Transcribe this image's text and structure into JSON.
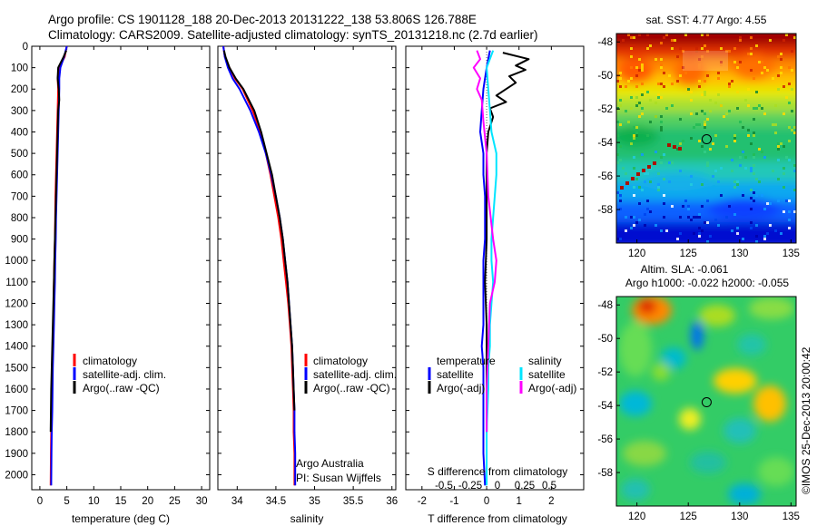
{
  "titles": {
    "line1": "Argo profile: CS 1901128_188 20-Dec-2013 20131222_138 53.806S 126.788E",
    "line2": "Climatology: CARS2009. Satellite-adjusted climatology: synTS_20131218.nc (2.7d earlier)"
  },
  "colors": {
    "climatology": "#ff0000",
    "satellite": "#0000ff",
    "argo": "#000000",
    "salinity_satellite": "#00e5ff",
    "salinity_argo": "#ff00ff"
  },
  "chart_data": [
    {
      "type": "line",
      "id": "temperature",
      "xlabel": "temperature (deg C)",
      "xlim": [
        -1.5,
        31.5
      ],
      "xticks": [
        0,
        5,
        10,
        15,
        20,
        25,
        30
      ],
      "ylim": [
        0,
        2070
      ],
      "yticks": [
        0,
        100,
        200,
        300,
        400,
        500,
        600,
        700,
        800,
        900,
        1000,
        1100,
        1200,
        1300,
        1400,
        1500,
        1600,
        1700,
        1800,
        1900,
        2000
      ],
      "y_reversed": true,
      "legend": [
        "climatology",
        "satellite-adj. clim.",
        "Argo(..raw -QC)"
      ],
      "series": [
        {
          "name": "climatology",
          "x": [
            5.0,
            4.6,
            3.6,
            3.3,
            3.4,
            3.3,
            3.2,
            3.1,
            3.0,
            2.9,
            2.85,
            2.8,
            2.7,
            2.6,
            2.55,
            2.5,
            2.4,
            2.3,
            2.2,
            2.15,
            2.1,
            2.05,
            2.0
          ],
          "y": [
            0,
            50,
            100,
            150,
            200,
            300,
            400,
            500,
            600,
            700,
            800,
            900,
            1000,
            1100,
            1200,
            1300,
            1400,
            1500,
            1600,
            1700,
            1800,
            1900,
            2050
          ]
        },
        {
          "name": "satellite-adj. clim.",
          "x": [
            5.0,
            4.5,
            3.8,
            3.6,
            3.6,
            3.5,
            3.4,
            3.3,
            3.2,
            3.1,
            3.0,
            2.95,
            2.85,
            2.8,
            2.7,
            2.6,
            2.5,
            2.4,
            2.35,
            2.3,
            2.2,
            2.15,
            2.1
          ],
          "y": [
            0,
            50,
            100,
            150,
            200,
            300,
            400,
            500,
            600,
            700,
            800,
            900,
            1000,
            1100,
            1200,
            1300,
            1400,
            1500,
            1600,
            1700,
            1800,
            1900,
            2050
          ]
        },
        {
          "name": "Argo(..raw -QC)",
          "x": [
            4.9,
            4.4,
            3.4,
            3.3,
            3.5,
            3.6,
            3.4,
            3.3,
            3.2,
            3.1,
            3.0,
            2.9,
            2.8,
            2.7,
            2.6,
            2.5,
            2.4,
            2.3,
            2.2,
            2.1,
            2.05,
            2.0
          ],
          "y": [
            20,
            50,
            100,
            150,
            200,
            250,
            300,
            400,
            500,
            600,
            700,
            800,
            900,
            1000,
            1100,
            1200,
            1300,
            1400,
            1500,
            1600,
            1700,
            1800
          ]
        }
      ]
    },
    {
      "type": "line",
      "id": "salinity",
      "xlabel": "salinity",
      "xlim": [
        33.75,
        36.05
      ],
      "xticks": [
        34,
        34.5,
        35,
        35.5,
        36
      ],
      "ylim": [
        0,
        2070
      ],
      "y_reversed": true,
      "legend": [
        "climatology",
        "satellite-adj. clim.",
        "Argo(..raw -QC)"
      ],
      "annotations": [
        "Argo Australia",
        "PI: Susan Wijffels"
      ],
      "series": [
        {
          "name": "climatology",
          "x": [
            33.82,
            33.84,
            33.9,
            33.97,
            34.07,
            34.2,
            34.3,
            34.37,
            34.43,
            34.48,
            34.53,
            34.57,
            34.6,
            34.63,
            34.66,
            34.68,
            34.7,
            34.71,
            34.72,
            34.73,
            34.73,
            34.74,
            34.74
          ],
          "y": [
            0,
            50,
            100,
            150,
            200,
            300,
            400,
            500,
            600,
            700,
            800,
            900,
            1000,
            1100,
            1200,
            1300,
            1400,
            1500,
            1600,
            1700,
            1800,
            1900,
            2050
          ]
        },
        {
          "name": "satellite-adj. clim.",
          "x": [
            33.82,
            33.84,
            33.88,
            33.94,
            34.03,
            34.17,
            34.28,
            34.37,
            34.44,
            34.5,
            34.55,
            34.59,
            34.62,
            34.65,
            34.67,
            34.69,
            34.71,
            34.72,
            34.73,
            34.74,
            34.74,
            34.75,
            34.75
          ],
          "y": [
            0,
            50,
            100,
            150,
            200,
            300,
            400,
            500,
            600,
            700,
            800,
            900,
            1000,
            1100,
            1200,
            1300,
            1400,
            1500,
            1600,
            1700,
            1800,
            1900,
            2050
          ]
        },
        {
          "name": "Argo(..raw -QC)",
          "x": [
            33.83,
            33.85,
            33.9,
            33.98,
            34.08,
            34.22,
            34.31,
            34.38,
            34.45,
            34.5,
            34.55,
            34.59,
            34.62,
            34.65,
            34.67,
            34.69,
            34.71,
            34.72,
            34.73,
            34.74
          ],
          "y": [
            20,
            50,
            100,
            150,
            200,
            300,
            400,
            500,
            600,
            700,
            800,
            900,
            1000,
            1100,
            1200,
            1300,
            1400,
            1500,
            1600,
            1700
          ]
        }
      ]
    },
    {
      "type": "line",
      "id": "difference",
      "xlabel": "T difference from climatology",
      "xlabel_top": "S difference from climatology",
      "xlim": [
        -2.5,
        3.0
      ],
      "xticks": [
        -2,
        -1,
        0,
        1,
        2
      ],
      "top_ticks": [
        "-0.5",
        "-0.25",
        "0",
        "0.25",
        "0.5"
      ],
      "ylim": [
        0,
        2070
      ],
      "y_reversed": true,
      "legend_left_title": "temperature",
      "legend_right_title": "salinity",
      "legend_left": [
        "satellite",
        "Argo(-adj)"
      ],
      "legend_right": [
        "satellite",
        "Argo(-adj)"
      ],
      "series": [
        {
          "name": "T satellite",
          "x": [
            0.1,
            0.0,
            -0.1,
            -0.15,
            -0.2,
            -0.1,
            -0.1,
            -0.05,
            -0.05,
            -0.05,
            -0.1,
            -0.1,
            -0.1,
            -0.1,
            -0.15,
            -0.1,
            -0.1,
            -0.1,
            -0.1,
            -0.1,
            -0.05
          ],
          "y": [
            20,
            100,
            200,
            300,
            400,
            500,
            600,
            700,
            800,
            900,
            1000,
            1100,
            1200,
            1300,
            1400,
            1500,
            1600,
            1700,
            1800,
            1900,
            2050
          ]
        },
        {
          "name": "T Argo(-adj)",
          "x": [
            0.5,
            1.3,
            0.9,
            1.2,
            0.7,
            0.9,
            0.6,
            0.3,
            0.6,
            0.1,
            0.2,
            0.05,
            0.0,
            0.0,
            0.0,
            -0.05,
            0.0,
            0.0,
            0.0
          ],
          "y": [
            30,
            60,
            90,
            110,
            140,
            170,
            200,
            230,
            260,
            290,
            330,
            400,
            500,
            700,
            900,
            1100,
            1300,
            1500,
            1800
          ]
        },
        {
          "name": "S satellite",
          "x": [
            0.2,
            0.0,
            0.05,
            0.1,
            0.15,
            0.3,
            0.3,
            0.25,
            0.2,
            0.15,
            0.15,
            0.2,
            0.15,
            0.1,
            0.1,
            0.05,
            0.05,
            0.0,
            0.0
          ],
          "y": [
            20,
            100,
            200,
            300,
            400,
            500,
            600,
            700,
            800,
            900,
            1000,
            1100,
            1200,
            1300,
            1400,
            1500,
            1600,
            1800,
            2050
          ]
        },
        {
          "name": "S Argo(-adj)",
          "x": [
            -0.3,
            -0.2,
            -0.4,
            -0.2,
            -0.3,
            -0.15,
            -0.1,
            0.0,
            0.05,
            0.2,
            0.3,
            0.25,
            0.1,
            0.05,
            0.0,
            0.0
          ],
          "y": [
            20,
            60,
            100,
            150,
            200,
            250,
            350,
            500,
            700,
            900,
            1000,
            1100,
            1200,
            1400,
            1600,
            1800
          ]
        }
      ]
    },
    {
      "type": "heatmap",
      "id": "sst-map",
      "title": "sat. SST: 4.77  Argo: 4.55",
      "xlim": [
        118,
        135.5
      ],
      "ylim": [
        -60,
        -47.5
      ],
      "xticks": [
        120,
        125,
        130,
        135
      ],
      "yticks": [
        -48,
        -50,
        -52,
        -54,
        -56,
        -58
      ],
      "marker": {
        "lon": 126.788,
        "lat": -53.806
      }
    },
    {
      "type": "heatmap",
      "id": "sla-map",
      "title": "Altim. SLA: -0.061",
      "subtitle": "Argo h1000: -0.022 h2000: -0.055",
      "xlim": [
        118,
        135.5
      ],
      "ylim": [
        -60,
        -47.5
      ],
      "xticks": [
        120,
        125,
        130,
        135
      ],
      "yticks": [
        -48,
        -50,
        -52,
        -54,
        -56,
        -58
      ],
      "marker": {
        "lon": 126.788,
        "lat": -53.806
      }
    }
  ],
  "footer": {
    "stamp": "©IMOS 25-Dec-2013 20:00:42"
  }
}
